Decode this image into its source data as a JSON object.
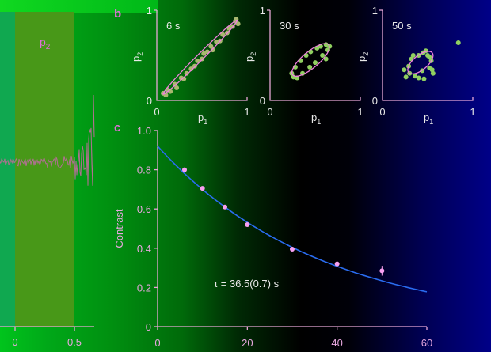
{
  "panel_a": {
    "band_label": "p",
    "band_label_sub": "2",
    "x_ticks": [
      "0",
      "0.5"
    ],
    "colors": {
      "band_teal": "#10a850",
      "band_olive": "#489818",
      "trace": "#b07090"
    }
  },
  "chart_data": [
    {
      "type": "scatter",
      "panel_label": "b",
      "annotation": "6 s",
      "xlabel": "p",
      "xlabel_sub": "1",
      "ylabel": "p",
      "ylabel_sub": "2",
      "xlim": [
        0,
        1
      ],
      "ylim": [
        0,
        1
      ],
      "x_ticks": [
        "0",
        "1"
      ],
      "y_ticks": [
        "0",
        "1"
      ],
      "ellipse": {
        "cx": 0.48,
        "cy": 0.48,
        "rx": 0.58,
        "ry": 0.035,
        "angle_deg": 45
      },
      "points": [
        [
          0.07,
          0.08
        ],
        [
          0.1,
          0.06
        ],
        [
          0.12,
          0.12
        ],
        [
          0.15,
          0.1
        ],
        [
          0.2,
          0.18
        ],
        [
          0.22,
          0.14
        ],
        [
          0.27,
          0.25
        ],
        [
          0.3,
          0.24
        ],
        [
          0.33,
          0.3
        ],
        [
          0.38,
          0.35
        ],
        [
          0.42,
          0.38
        ],
        [
          0.45,
          0.44
        ],
        [
          0.5,
          0.46
        ],
        [
          0.52,
          0.52
        ],
        [
          0.56,
          0.54
        ],
        [
          0.6,
          0.6
        ],
        [
          0.62,
          0.56
        ],
        [
          0.66,
          0.65
        ],
        [
          0.7,
          0.66
        ],
        [
          0.73,
          0.73
        ],
        [
          0.78,
          0.75
        ],
        [
          0.8,
          0.8
        ],
        [
          0.84,
          0.82
        ],
        [
          0.87,
          0.88
        ],
        [
          0.9,
          0.85
        ],
        [
          0.88,
          0.9
        ]
      ],
      "colors": {
        "points": "#a8b870",
        "ellipse": "#f080e0"
      }
    },
    {
      "type": "scatter",
      "annotation": "30 s",
      "xlabel": "p",
      "xlabel_sub": "1",
      "ylabel": "p",
      "ylabel_sub": "2",
      "xlim": [
        0,
        1
      ],
      "ylim": [
        0,
        1
      ],
      "x_ticks": [
        "0",
        "1"
      ],
      "y_ticks": [
        "0",
        "1"
      ],
      "ellipse": {
        "cx": 0.45,
        "cy": 0.45,
        "rx": 0.26,
        "ry": 0.09,
        "angle_deg": 40
      },
      "points": [
        [
          0.24,
          0.3
        ],
        [
          0.26,
          0.26
        ],
        [
          0.3,
          0.25
        ],
        [
          0.28,
          0.37
        ],
        [
          0.34,
          0.44
        ],
        [
          0.36,
          0.3
        ],
        [
          0.4,
          0.5
        ],
        [
          0.45,
          0.54
        ],
        [
          0.44,
          0.37
        ],
        [
          0.5,
          0.42
        ],
        [
          0.52,
          0.58
        ],
        [
          0.56,
          0.6
        ],
        [
          0.58,
          0.5
        ],
        [
          0.62,
          0.62
        ],
        [
          0.64,
          0.56
        ],
        [
          0.62,
          0.46
        ],
        [
          0.66,
          0.6
        ]
      ],
      "colors": {
        "points": "#90d060",
        "ellipse": "#f080e0"
      }
    },
    {
      "type": "scatter",
      "annotation": "50 s",
      "xlabel": "p",
      "xlabel_sub": "1",
      "ylabel": "p",
      "ylabel_sub": "2",
      "xlim": [
        0,
        1
      ],
      "ylim": [
        0,
        1
      ],
      "x_ticks": [
        "0",
        "1"
      ],
      "y_ticks": [
        "0",
        "1"
      ],
      "ellipse": {
        "cx": 0.42,
        "cy": 0.42,
        "rx": 0.17,
        "ry": 0.08,
        "angle_deg": 40
      },
      "points": [
        [
          0.24,
          0.34
        ],
        [
          0.26,
          0.26
        ],
        [
          0.3,
          0.3
        ],
        [
          0.29,
          0.38
        ],
        [
          0.32,
          0.46
        ],
        [
          0.34,
          0.5
        ],
        [
          0.36,
          0.27
        ],
        [
          0.4,
          0.5
        ],
        [
          0.4,
          0.25
        ],
        [
          0.45,
          0.53
        ],
        [
          0.46,
          0.24
        ],
        [
          0.48,
          0.55
        ],
        [
          0.5,
          0.5
        ],
        [
          0.52,
          0.48
        ],
        [
          0.54,
          0.44
        ],
        [
          0.52,
          0.36
        ],
        [
          0.55,
          0.34
        ],
        [
          0.56,
          0.3
        ],
        [
          0.44,
          0.33
        ],
        [
          0.84,
          0.64
        ]
      ],
      "colors": {
        "points": "#90d060",
        "ellipse": "#f080e0"
      }
    },
    {
      "type": "line",
      "panel_label": "c",
      "ylabel": "Contrast",
      "xlabel": "",
      "xlim": [
        0,
        60
      ],
      "ylim": [
        0,
        1.0
      ],
      "x_ticks": [
        "0",
        "20",
        "40",
        "60"
      ],
      "y_ticks": [
        "0",
        "0.2",
        "0.4",
        "0.6",
        "0.8",
        "1.0"
      ],
      "points": [
        [
          6,
          0.8
        ],
        [
          10,
          0.705
        ],
        [
          15,
          0.61
        ],
        [
          20,
          0.52
        ],
        [
          30,
          0.395
        ],
        [
          40,
          0.32
        ],
        [
          50,
          0.285
        ]
      ],
      "error_bars": [
        [
          50,
          0.025
        ]
      ],
      "fit": {
        "amplitude": 0.92,
        "tau": 36.5
      },
      "annotation": "τ = 36.5(0.7) s",
      "colors": {
        "points": "#f8a0f0",
        "fit": "#2a6cf0"
      }
    }
  ]
}
